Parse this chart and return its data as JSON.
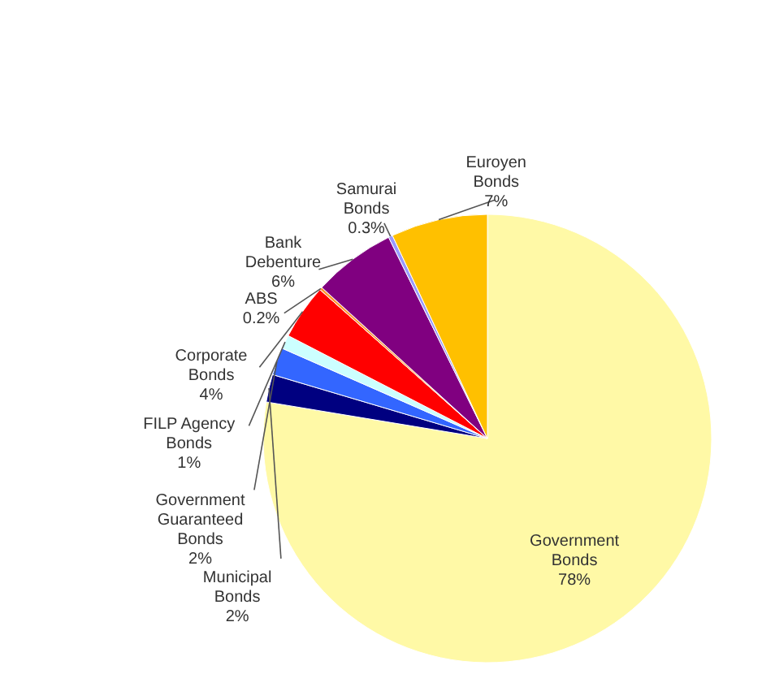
{
  "chart_data": {
    "type": "pie",
    "categories": [
      "Government Bonds",
      "Municipal Bonds",
      "Government Guaranteed Bonds",
      "FILP Agency Bonds",
      "Corporate Bonds",
      "ABS",
      "Bank Debenture",
      "Samurai Bonds",
      "Euroyen Bonds"
    ],
    "values": [
      78,
      2,
      2,
      1,
      4,
      0.2,
      6,
      0.3,
      7
    ],
    "colors": [
      "#fff9a6",
      "#000080",
      "#3366ff",
      "#ccffff",
      "#ff0000",
      "#ff9933",
      "#800080",
      "#9999ff",
      "#ffc000"
    ],
    "value_labels": [
      "78%",
      "2%",
      "2%",
      "1%",
      "4%",
      "0.2%",
      "6%",
      "0.3%",
      "7%"
    ]
  }
}
